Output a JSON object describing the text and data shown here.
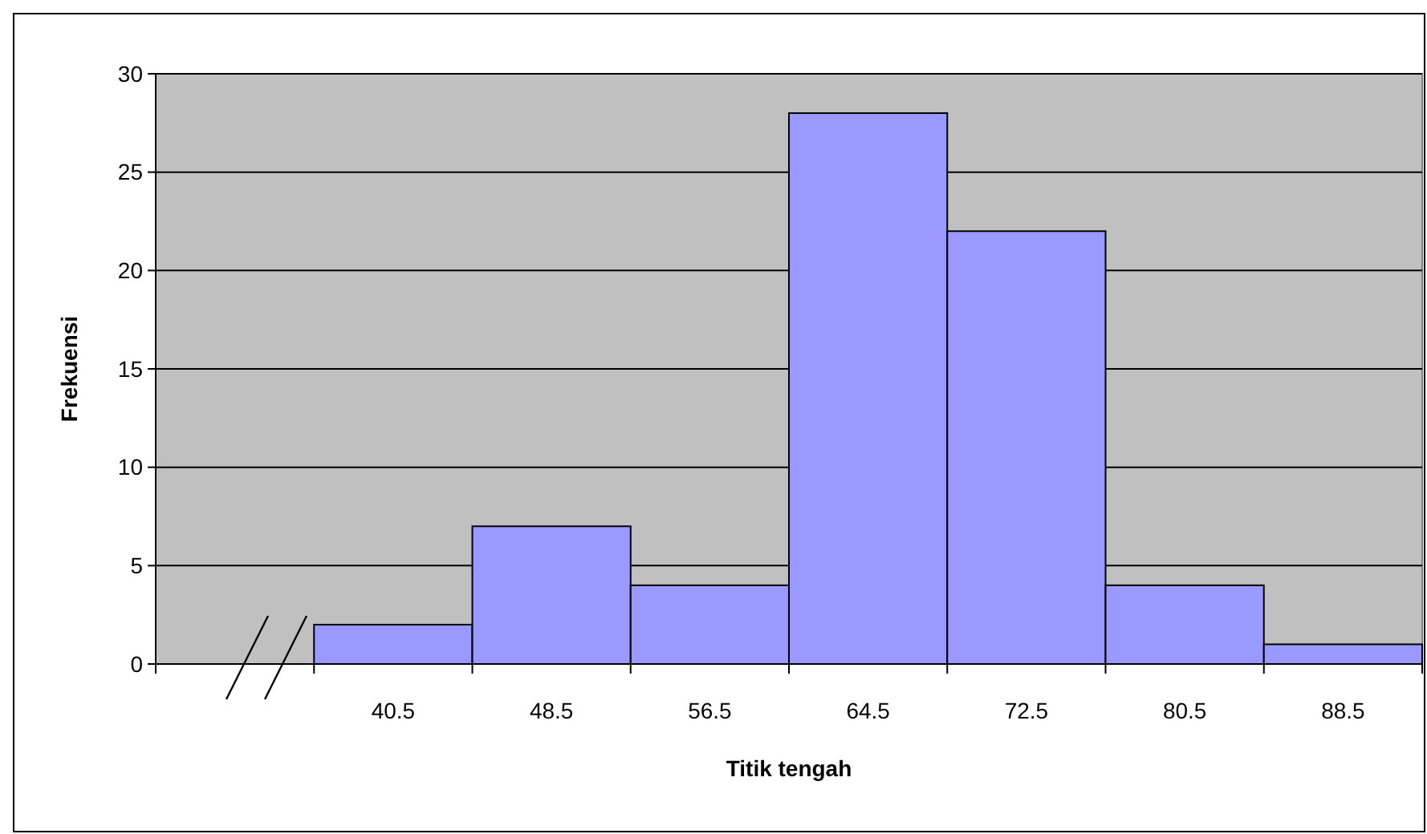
{
  "chart_data": {
    "type": "bar",
    "xlabel": "Titik tengah",
    "ylabel": "Frekuensi",
    "categories": [
      null,
      "40.5",
      "48.5",
      "56.5",
      "64.5",
      "72.5",
      "80.5",
      "88.5"
    ],
    "values": [
      null,
      2,
      7,
      4,
      28,
      22,
      4,
      1
    ],
    "color": "#9999ff",
    "ylim": [
      0,
      30
    ],
    "yticks": [
      0,
      5,
      10,
      15,
      20,
      25,
      30
    ],
    "grid": "y"
  }
}
